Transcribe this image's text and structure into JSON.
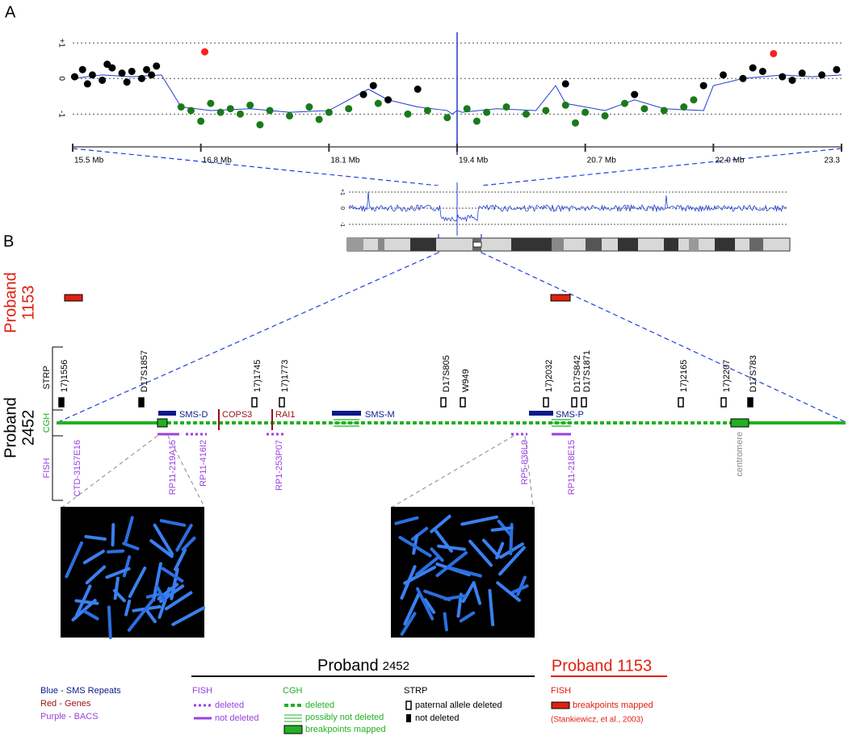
{
  "panel_a": {
    "label": "A",
    "xlim": [
      15.5,
      23.3
    ],
    "ylim": [
      -1.9,
      1.3
    ],
    "yticks": [
      {
        "value": 1,
        "label": "+1"
      },
      0,
      -1
    ],
    "xticks": [
      {
        "value": 15.5,
        "label": "15.5 Mb"
      },
      {
        "value": 16.8,
        "label": "16.8 Mb"
      },
      {
        "value": 18.1,
        "label": "18.1 Mb"
      },
      {
        "value": 19.4,
        "label": "19.4 Mb"
      },
      {
        "value": 20.7,
        "label": "20.7 Mb"
      },
      {
        "value": 22.0,
        "label": "22.0 Mb"
      },
      {
        "value": 23.3,
        "label": "23.3"
      }
    ],
    "points": [
      {
        "color": "#000000",
        "x": [
          15.52,
          15.6,
          15.7,
          15.8,
          15.9,
          16.0,
          16.1,
          16.2,
          16.3,
          16.35,
          15.65,
          15.85,
          16.05,
          16.25,
          18.45,
          18.55,
          18.7,
          19.0,
          20.5,
          21.2,
          21.9,
          22.1,
          22.3,
          22.5,
          22.7,
          22.9,
          23.1,
          23.25,
          22.4,
          22.8
        ],
        "y": [
          0.05,
          0.25,
          0.1,
          -0.05,
          0.3,
          0.15,
          0.2,
          0.0,
          0.1,
          0.35,
          -0.15,
          0.4,
          -0.1,
          0.25,
          -0.45,
          -0.2,
          -0.6,
          -0.3,
          -0.15,
          -0.45,
          -0.2,
          0.1,
          0.0,
          0.2,
          0.05,
          0.15,
          0.1,
          0.25,
          0.3,
          -0.05
        ]
      },
      {
        "color": "#1a7a1a",
        "x": [
          16.6,
          16.7,
          16.8,
          16.9,
          17.0,
          17.1,
          17.2,
          17.3,
          17.5,
          17.7,
          17.9,
          18.1,
          18.3,
          18.6,
          18.9,
          19.1,
          19.3,
          19.5,
          19.7,
          19.9,
          20.1,
          20.3,
          20.5,
          20.7,
          20.9,
          21.1,
          21.3,
          21.5,
          21.7,
          21.8,
          17.4,
          18.0,
          19.6,
          20.6
        ],
        "y": [
          -0.8,
          -0.9,
          -1.2,
          -0.7,
          -0.95,
          -0.85,
          -1.0,
          -0.75,
          -0.9,
          -1.05,
          -0.8,
          -0.95,
          -0.85,
          -0.7,
          -1.0,
          -0.9,
          -1.1,
          -0.85,
          -0.95,
          -0.8,
          -1.0,
          -0.9,
          -0.75,
          -0.95,
          -1.05,
          -0.7,
          -0.85,
          -0.9,
          -0.8,
          -0.6,
          -1.3,
          -1.15,
          -1.2,
          -1.25
        ]
      },
      {
        "color": "#ff2020",
        "x": [
          16.84,
          22.61
        ],
        "y": [
          0.75,
          0.7
        ]
      }
    ],
    "trace": {
      "color": "#1f3fd0",
      "x": [
        15.5,
        15.8,
        16.1,
        16.4,
        16.6,
        16.9,
        17.3,
        17.7,
        18.1,
        18.5,
        18.7,
        19.0,
        19.3,
        19.35,
        19.4,
        19.45,
        19.8,
        20.2,
        20.4,
        20.5,
        20.9,
        21.2,
        21.5,
        21.9,
        22.0,
        22.3,
        22.7,
        23.0,
        23.3
      ],
      "y": [
        0.0,
        0.1,
        0.05,
        0.1,
        -0.8,
        -0.9,
        -0.85,
        -0.95,
        -0.9,
        -0.3,
        -0.6,
        -0.8,
        -0.9,
        -1.0,
        -0.9,
        -0.95,
        -0.85,
        -0.9,
        -0.2,
        -0.7,
        -0.9,
        -0.6,
        -0.85,
        -0.9,
        -0.2,
        0.0,
        0.1,
        0.05,
        0.1
      ]
    }
  },
  "inset": {
    "yticks": [
      {
        "value": 1,
        "label": "+1"
      },
      0,
      -1
    ]
  },
  "panel_b": {
    "label": "B",
    "proband_1153": {
      "word": "Proband",
      "number": "1153"
    },
    "proband_2452": {
      "word": "Proband",
      "number": "2452"
    },
    "tracks": {
      "strp": "STRP",
      "cgh": "CGH",
      "fish": "FISH"
    },
    "strp_markers": [
      {
        "label": "17)1556",
        "filled": true
      },
      {
        "label": "D17S1857",
        "filled": true
      },
      {
        "label": "17)1745",
        "filled": false
      },
      {
        "label": "17)1773",
        "filled": false
      },
      {
        "label": "D17S805",
        "filled": false
      },
      {
        "label": "W949",
        "filled": false
      },
      {
        "label": "17)2032",
        "filled": false
      },
      {
        "label": "D17S842",
        "filled": false
      },
      {
        "label": "D17S1871",
        "filled": false
      },
      {
        "label": "17)2165",
        "filled": false
      },
      {
        "label": "17)2207",
        "filled": false
      },
      {
        "label": "D17S783",
        "filled": true
      }
    ],
    "repeats": [
      "SMS-D",
      "SMS-M",
      "SMS-P"
    ],
    "genes": [
      "COPS3",
      "RAI1"
    ],
    "bacs": [
      "CTD-3157E16",
      "RP11-219A15",
      "RP11-416I2",
      "RP1-253P07",
      "RP5-836L9",
      "RP11-218E15"
    ],
    "centromere": "centromere"
  },
  "legend": {
    "colors": [
      "Blue - SMS Repeats",
      "Red - Genes",
      "Purple - BACS"
    ],
    "proband_2452": {
      "word": "Proband",
      "number": "2452"
    },
    "proband_1153": "Proband 1153",
    "fish": {
      "title": "FISH",
      "items": [
        "deleted",
        "not deleted"
      ]
    },
    "cgh": {
      "title": "CGH",
      "items": [
        "deleted",
        "possibly not deleted",
        "breakpoints mapped"
      ]
    },
    "strp": {
      "title": "STRP",
      "items": [
        "paternal allele deleted",
        "not deleted"
      ]
    },
    "fish_1153": {
      "title": "FISH",
      "items": [
        "breakpoints mapped"
      ],
      "citation": "(Stankiewicz, et al., 2003)"
    }
  }
}
